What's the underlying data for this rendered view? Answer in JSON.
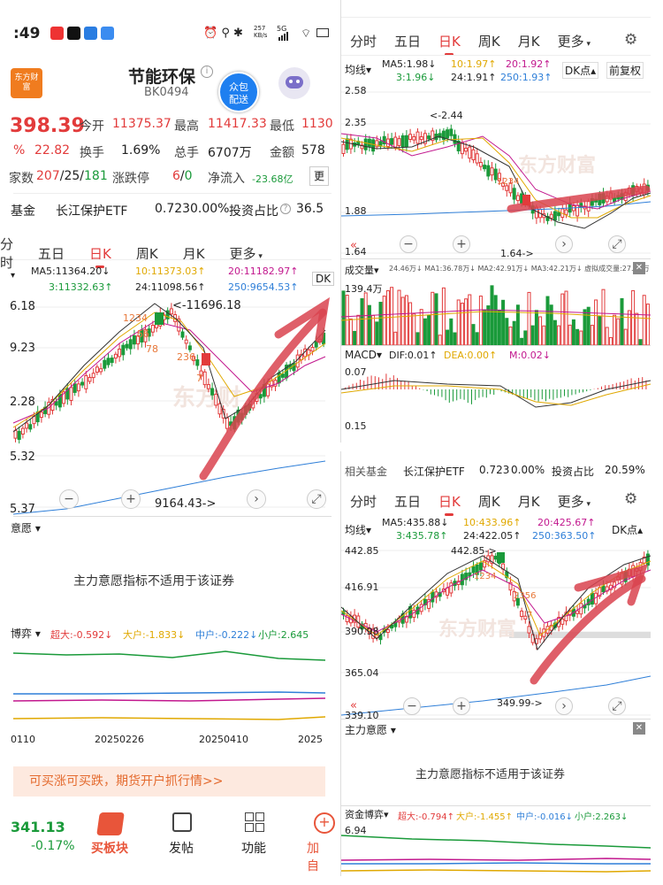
{
  "status_bar": {
    "time": ":49",
    "net_speed": "257\nKB/s",
    "net_type": "5G"
  },
  "header": {
    "logo_text": "东方财富",
    "title": "节能环保",
    "code": "BK0494",
    "badge": "众包\n配送"
  },
  "quote": {
    "price": "398.39",
    "change_pct": "%",
    "change": "22.82",
    "open_label": "今开",
    "open": "11375.37",
    "high_label": "最高",
    "high": "11417.33",
    "low_label": "最低",
    "low": "1130",
    "turnover_label": "换手",
    "turnover": "1.69%",
    "volume_label": "总手",
    "volume": "6707万",
    "amount_label": "金额",
    "amount": "578",
    "count_label": "家数",
    "up": "207",
    "flat": "25",
    "down": "181",
    "limit_label": "涨跌停",
    "limit_up": "6",
    "limit_down": "0",
    "inflow_label": "净流入",
    "inflow": "-23.68亿",
    "more": "更"
  },
  "fund_row": {
    "label": "基金",
    "name": "长江保护ETF",
    "price": "0.723",
    "pct": "0.00%",
    "ratio_label": "投资占比",
    "ratio_left": "36.5",
    "ratio_right": "20.59%",
    "right_label": "相关基金"
  },
  "tabs": {
    "t1": "分时",
    "t2": "五日",
    "t3": "日K",
    "t4": "周K",
    "t5": "月K",
    "t6": "更多"
  },
  "left_chart": {
    "ma5": "MA5:11364.20↓",
    "ma10": "10:11373.03↑",
    "ma20": "20:11182.97↑",
    "ma3": "3:11332.63↑",
    "ma24": "24:11098.56↑",
    "ma250": "250:9654.53↑",
    "dk": "DK",
    "y1": "6.18",
    "y2": "9.23",
    "y3": "2.28",
    "y4": "5.32",
    "y5": "5.37",
    "high_label": "<-11696.18",
    "low_label": "9164.43->",
    "sentiment_label": "意愿",
    "sentiment_msg": "主力意愿指标不适用于该证券",
    "game_label": "博弈",
    "big": "超大:-0.592↓",
    "large": "大户:-1.833↓",
    "mid": "中户:-0.222↓",
    "small": "小户:2.645",
    "d1": "0110",
    "d2": "20250226",
    "d3": "20250410",
    "d4": "2025",
    "banner": "可买涨可买跌，期货开户抓行情>>"
  },
  "bottom_nav": {
    "index_value": "341.13",
    "index_pct": "-0.17%",
    "buy": "买板块",
    "post": "发帖",
    "func": "功能",
    "add": "加自"
  },
  "right_top": {
    "line_type": "均线",
    "ma5": "MA5:1.98↓",
    "ma10": "10:1.97↑",
    "ma20": "20:1.92↑",
    "ma3": "3:1.96↓",
    "ma24": "24:1.91↑",
    "ma250": "250:1.93↑",
    "dk": "DK点",
    "adj": "前复权",
    "y1": "2.58",
    "y2": "2.35",
    "y3": "1.88",
    "y4": "1.64",
    "high_label": "<-2.44",
    "low_label": "1.64->",
    "vol_label": "成交量",
    "vol_vals": "24.46万↓ MA1:36.78万↓ MA2:42.91万↓ MA3:42.21万↓ 虚拟成交量:27.70万",
    "vol_max": "139.4万",
    "macd_label": "MACD",
    "dif": "DIF:0.01↑",
    "dea": "DEA:0.00↑",
    "m": "M:0.02↓",
    "macd_hi": "0.07",
    "macd_lo": "0.15"
  },
  "right_bottom": {
    "line_type": "均线",
    "ma5": "MA5:435.88↓",
    "ma10": "10:433.96↑",
    "ma20": "20:425.67↑",
    "ma3": "3:435.78↑",
    "ma24": "24:422.05↑",
    "ma250": "250:363.50↑",
    "dk": "DK点",
    "y1": "442.85",
    "y2": "416.91",
    "y3": "390.98",
    "y4": "365.04",
    "y5": "339.10",
    "high_label": "442.85->",
    "low_label": "349.99->",
    "sentiment_label": "主力意愿",
    "sentiment_msg": "主力意愿指标不适用于该证券",
    "game_label": "资金博弈",
    "big": "超大:-0.794↑",
    "large": "大户:-1.455↑",
    "mid": "中户:-0.016↓",
    "small": "小户:2.263↓",
    "g_y": "6.94"
  }
}
